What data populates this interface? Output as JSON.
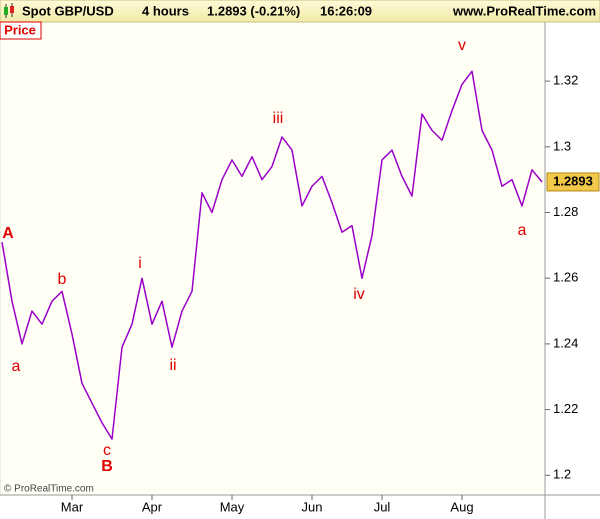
{
  "header": {
    "symbol": "Spot GBP/USD",
    "period": "4 hours",
    "quote": "1.2893 (-0.21%)",
    "time": "16:26:09",
    "site": "www.ProRealTime.com"
  },
  "chart_data": {
    "type": "line",
    "title": "Price",
    "color": "#9b00c8",
    "categories": [
      null,
      null,
      null,
      null,
      null,
      null,
      null,
      "Mar",
      null,
      null,
      null,
      null,
      null,
      null,
      null,
      "Apr",
      null,
      null,
      null,
      null,
      null,
      null,
      null,
      "May",
      null,
      null,
      null,
      null,
      null,
      null,
      null,
      "Jun",
      null,
      null,
      null,
      null,
      null,
      null,
      "Jul",
      null,
      null,
      null,
      null,
      null,
      null,
      null,
      "Aug",
      null,
      null,
      null,
      null,
      null,
      null,
      null,
      null
    ],
    "values": [
      1.271,
      1.253,
      1.24,
      1.25,
      1.246,
      1.253,
      1.256,
      1.243,
      1.228,
      1.222,
      1.216,
      1.211,
      1.239,
      1.246,
      1.26,
      1.246,
      1.253,
      1.239,
      1.25,
      1.256,
      1.286,
      1.28,
      1.29,
      1.296,
      1.291,
      1.297,
      1.29,
      1.294,
      1.303,
      1.299,
      1.282,
      1.288,
      1.291,
      1.283,
      1.274,
      1.276,
      1.26,
      1.273,
      1.296,
      1.299,
      1.291,
      1.285,
      1.31,
      1.305,
      1.302,
      1.311,
      1.319,
      1.323,
      1.305,
      1.299,
      1.288,
      1.29,
      1.282,
      1.293,
      1.2893
    ],
    "ylim": [
      1.194,
      1.338
    ],
    "yticks": [
      1.2,
      1.22,
      1.24,
      1.26,
      1.28,
      1.3,
      1.32
    ],
    "annotations": [
      "A",
      "a",
      "b",
      "c",
      "B",
      "i",
      "ii",
      "iii",
      "iv",
      "v",
      "a"
    ],
    "copyright": "© ProRealTime.com"
  }
}
